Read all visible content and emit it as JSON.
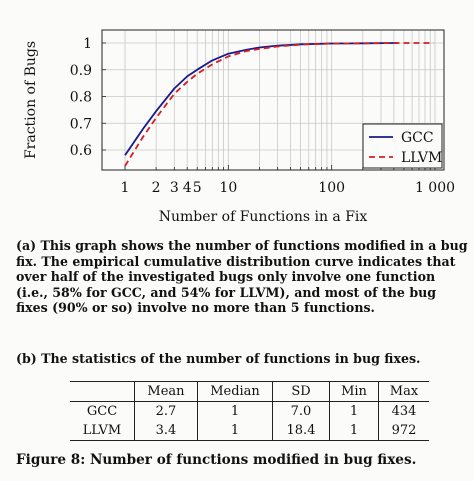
{
  "chart_data": {
    "type": "line",
    "xscale": "log",
    "xlabel": "Number of Functions in a Fix",
    "ylabel": "Fraction of Bugs",
    "xlim": [
      1,
      1000
    ],
    "ylim": [
      0.55,
      1.0
    ],
    "x_ticks": [
      1,
      2,
      3,
      4,
      5,
      10,
      100,
      1000
    ],
    "x_tick_labels": [
      "1",
      "2",
      "3",
      "4",
      "5",
      "10",
      "100",
      "1 000"
    ],
    "y_ticks": [
      0.6,
      0.7,
      0.8,
      0.9,
      1.0
    ],
    "y_tick_labels": [
      "0.6",
      "0.7",
      "0.8",
      "0.9",
      "1"
    ],
    "grid": true,
    "legend": "bottom-right",
    "series": [
      {
        "name": "GCC",
        "color": "#1a1a8c",
        "style": "solid",
        "x": [
          1,
          1.5,
          2,
          3,
          4,
          5,
          7,
          10,
          15,
          20,
          30,
          50,
          100,
          200,
          434
        ],
        "y": [
          0.58,
          0.68,
          0.745,
          0.83,
          0.875,
          0.9,
          0.935,
          0.96,
          0.975,
          0.983,
          0.99,
          0.995,
          0.998,
          0.999,
          1.0
        ]
      },
      {
        "name": "LLVM",
        "color": "#d42020",
        "style": "dashed",
        "x": [
          1,
          1.5,
          2,
          3,
          4,
          5,
          7,
          10,
          15,
          20,
          30,
          50,
          100,
          200,
          500,
          972
        ],
        "y": [
          0.54,
          0.65,
          0.72,
          0.81,
          0.855,
          0.885,
          0.92,
          0.95,
          0.97,
          0.978,
          0.987,
          0.994,
          0.998,
          0.999,
          1.0,
          1.0
        ]
      }
    ]
  },
  "caption_a": "(a) This graph shows the number of functions modified in a bug fix. The empirical cumulative distribution curve indicates that over half of the investigated bugs only involve one function (i.e., 58% for GCC, and 54% for LLVM), and most of the bug fixes (90% or so) involve no more than 5 functions.",
  "caption_b": "(b) The statistics of the number of functions in bug fixes.",
  "table": {
    "headers": [
      "",
      "Mean",
      "Median",
      "SD",
      "Min",
      "Max"
    ],
    "rows": [
      [
        "GCC",
        "2.7",
        "1",
        "7.0",
        "1",
        "434"
      ],
      [
        "LLVM",
        "3.4",
        "1",
        "18.4",
        "1",
        "972"
      ]
    ]
  },
  "figure_caption": "Figure 8: Number of functions modified in bug fixes."
}
